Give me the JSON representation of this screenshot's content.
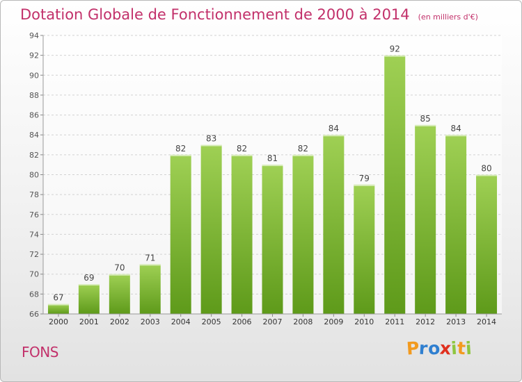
{
  "title": "Dotation Globale de Fonctionnement de 2000 à 2014",
  "unit": "(en milliers d'€)",
  "commune": "FONS",
  "logo": {
    "letters": [
      "P",
      "r",
      "o",
      "x",
      "i",
      "t",
      "i"
    ],
    "colors": [
      "#f29a1f",
      "#2f7fd0",
      "#2f7fd0",
      "#e0301e",
      "#8ec63f",
      "#f29a1f",
      "#8ec63f"
    ]
  },
  "chart_data": {
    "type": "bar",
    "categories": [
      "2000",
      "2001",
      "2002",
      "2003",
      "2004",
      "2005",
      "2006",
      "2007",
      "2008",
      "2009",
      "2010",
      "2011",
      "2012",
      "2013",
      "2014"
    ],
    "values": [
      67,
      69,
      70,
      71,
      82,
      83,
      82,
      81,
      82,
      84,
      79,
      92,
      85,
      84,
      80
    ],
    "ylim": [
      66,
      94
    ],
    "yticks": [
      66,
      68,
      70,
      72,
      74,
      76,
      78,
      80,
      82,
      84,
      86,
      88,
      90,
      92,
      94
    ],
    "grid": true,
    "bar_color_top": "#9fd054",
    "bar_color_bottom": "#5e9a1a"
  }
}
